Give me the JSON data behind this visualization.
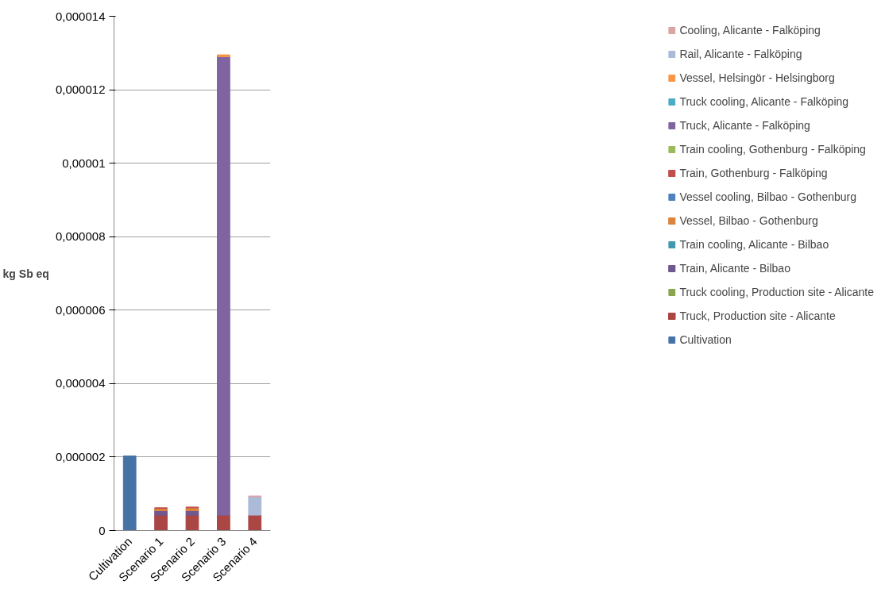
{
  "chart_data": {
    "type": "bar",
    "stacked": true,
    "ylabel": "kg Sb eq",
    "categories": [
      "Cultivation",
      "Scenario 1",
      "Scenario 2",
      "Scenario 3",
      "Scenario 4"
    ],
    "series": [
      {
        "name": "Cultivation",
        "color": "#4572a7",
        "values": [
          2.03e-06,
          null,
          null,
          null,
          null
        ]
      },
      {
        "name": "Truck, Production site - Alicante",
        "color": "#aa4643",
        "values": [
          null,
          4.2e-07,
          4.2e-07,
          4.2e-07,
          4.2e-07
        ]
      },
      {
        "name": "Truck cooling, Production site - Alicante",
        "color": "#89a54e",
        "values": [
          null,
          null,
          null,
          null,
          null
        ]
      },
      {
        "name": "Train, Alicante - Bilbao",
        "color": "#71588f",
        "values": [
          null,
          1.2e-07,
          1.2e-07,
          null,
          null
        ]
      },
      {
        "name": "Train cooling, Alicante - Bilbao",
        "color": "#4198af",
        "values": [
          null,
          null,
          null,
          null,
          null
        ]
      },
      {
        "name": "Vessel, Bilbao - Gothenburg",
        "color": "#db843d",
        "values": [
          null,
          6e-08,
          8e-08,
          null,
          null
        ]
      },
      {
        "name": "Vessel cooling, Bilbao - Gothenburg",
        "color": "#4f81bd",
        "values": [
          null,
          null,
          null,
          null,
          null
        ]
      },
      {
        "name": "Train, Gothenburg - Falköping",
        "color": "#c0504d",
        "values": [
          null,
          2e-08,
          2e-08,
          null,
          null
        ]
      },
      {
        "name": "Train cooling, Gothenburg - Falköping",
        "color": "#9bbb59",
        "values": [
          null,
          null,
          null,
          null,
          null
        ]
      },
      {
        "name": "Truck, Alicante - Falköping",
        "color": "#8064a2",
        "values": [
          null,
          null,
          null,
          1.248e-05,
          null
        ]
      },
      {
        "name": "Truck cooling, Alicante - Falköping",
        "color": "#4bacc6",
        "values": [
          null,
          null,
          null,
          null,
          null
        ]
      },
      {
        "name": "Vessel, Helsingör - Helsingborg",
        "color": "#f79646",
        "values": [
          null,
          null,
          null,
          5e-08,
          null
        ]
      },
      {
        "name": "Rail, Alicante - Falköping",
        "color": "#aabad7",
        "values": [
          null,
          null,
          null,
          null,
          5e-07
        ]
      },
      {
        "name": "Cooling, Alicante - Falköping",
        "color": "#d9a6a4",
        "values": [
          null,
          null,
          null,
          null,
          2e-08
        ]
      }
    ],
    "ylim": [
      0,
      1.4e-05
    ],
    "yticks": [
      0,
      {
        "value": 2e-06,
        "label": "0,000002"
      },
      {
        "value": 4e-06,
        "label": "0,000004"
      },
      {
        "value": 6e-06,
        "label": "0,000006"
      },
      {
        "value": 8e-06,
        "label": "0,000008"
      },
      {
        "value": 1e-05,
        "label": "0,00001"
      },
      {
        "value": 1.2e-05,
        "label": "0,000012"
      },
      {
        "value": 1.4e-05,
        "label": "0,000014"
      }
    ],
    "grid": "y",
    "legend": "right"
  }
}
